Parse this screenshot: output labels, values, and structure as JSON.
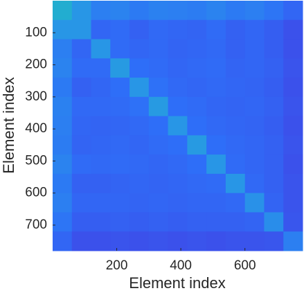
{
  "chart_data": {
    "type": "heatmap",
    "xlabel": "Element index",
    "ylabel": "Element index",
    "xlim": [
      0,
      780
    ],
    "ylim": [
      0,
      780
    ],
    "y_reversed": true,
    "xticks": [
      200,
      400,
      600
    ],
    "yticks": [
      100,
      200,
      300,
      400,
      500,
      600,
      700
    ],
    "zlim": [
      0,
      1
    ],
    "colormap": [
      "#3e26a8",
      "#4143e5",
      "#2e6ff8",
      "#2896e6",
      "#1fb6c7",
      "#5cc48e",
      "#b9c23e"
    ],
    "z": [
      [
        0.62,
        0.5,
        0.4,
        0.42,
        0.38,
        0.41,
        0.4,
        0.39,
        0.42,
        0.38,
        0.4,
        0.36,
        0.3
      ],
      [
        0.5,
        0.5,
        0.3,
        0.32,
        0.28,
        0.31,
        0.3,
        0.29,
        0.32,
        0.28,
        0.3,
        0.27,
        0.22
      ],
      [
        0.4,
        0.3,
        0.5,
        0.32,
        0.3,
        0.31,
        0.29,
        0.3,
        0.31,
        0.28,
        0.3,
        0.27,
        0.22
      ],
      [
        0.42,
        0.32,
        0.32,
        0.52,
        0.33,
        0.32,
        0.3,
        0.31,
        0.32,
        0.29,
        0.3,
        0.28,
        0.23
      ],
      [
        0.38,
        0.28,
        0.3,
        0.33,
        0.5,
        0.34,
        0.31,
        0.3,
        0.31,
        0.3,
        0.29,
        0.27,
        0.22
      ],
      [
        0.41,
        0.31,
        0.31,
        0.32,
        0.34,
        0.52,
        0.33,
        0.32,
        0.3,
        0.29,
        0.3,
        0.28,
        0.23
      ],
      [
        0.4,
        0.3,
        0.29,
        0.3,
        0.31,
        0.33,
        0.5,
        0.33,
        0.31,
        0.3,
        0.29,
        0.27,
        0.22
      ],
      [
        0.39,
        0.29,
        0.3,
        0.31,
        0.3,
        0.32,
        0.33,
        0.52,
        0.33,
        0.31,
        0.3,
        0.28,
        0.23
      ],
      [
        0.42,
        0.32,
        0.31,
        0.32,
        0.31,
        0.3,
        0.31,
        0.33,
        0.5,
        0.32,
        0.3,
        0.28,
        0.22
      ],
      [
        0.38,
        0.28,
        0.28,
        0.29,
        0.3,
        0.29,
        0.3,
        0.31,
        0.32,
        0.5,
        0.31,
        0.28,
        0.23
      ],
      [
        0.4,
        0.3,
        0.3,
        0.3,
        0.29,
        0.3,
        0.29,
        0.3,
        0.3,
        0.31,
        0.48,
        0.29,
        0.23
      ],
      [
        0.36,
        0.27,
        0.27,
        0.28,
        0.27,
        0.28,
        0.27,
        0.28,
        0.28,
        0.28,
        0.29,
        0.46,
        0.24
      ],
      [
        0.3,
        0.22,
        0.22,
        0.23,
        0.22,
        0.23,
        0.22,
        0.23,
        0.22,
        0.23,
        0.23,
        0.24,
        0.4
      ]
    ]
  }
}
